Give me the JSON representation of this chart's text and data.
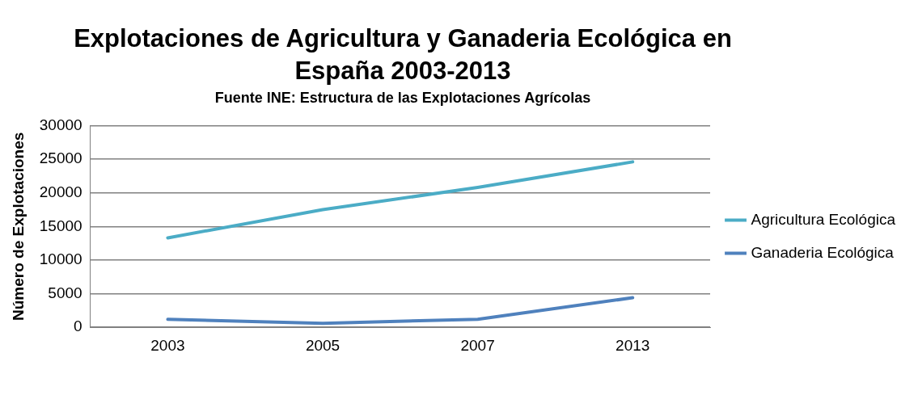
{
  "chart_data": {
    "type": "line",
    "title": "Explotaciones de Agricultura y Ganaderia Ecológica en España 2003-2013",
    "subtitle": "Fuente INE: Estructura de las Explotaciones Agrícolas",
    "ylabel": "Número de Explotaciones",
    "categories": [
      "2003",
      "2005",
      "2007",
      "2013"
    ],
    "series": [
      {
        "name": "Agricultura Ecológica",
        "color": "#4bacc6",
        "values": [
          13300,
          17500,
          20800,
          24600
        ]
      },
      {
        "name": "Ganaderia Ecológica",
        "color": "#4f81bd",
        "values": [
          1200,
          600,
          1200,
          4400
        ]
      }
    ],
    "ylim": [
      0,
      30000
    ],
    "yticks": [
      0,
      5000,
      10000,
      15000,
      20000,
      25000,
      30000
    ],
    "grid": "y",
    "legend": "right",
    "marker": "none",
    "line_style": "solid"
  }
}
